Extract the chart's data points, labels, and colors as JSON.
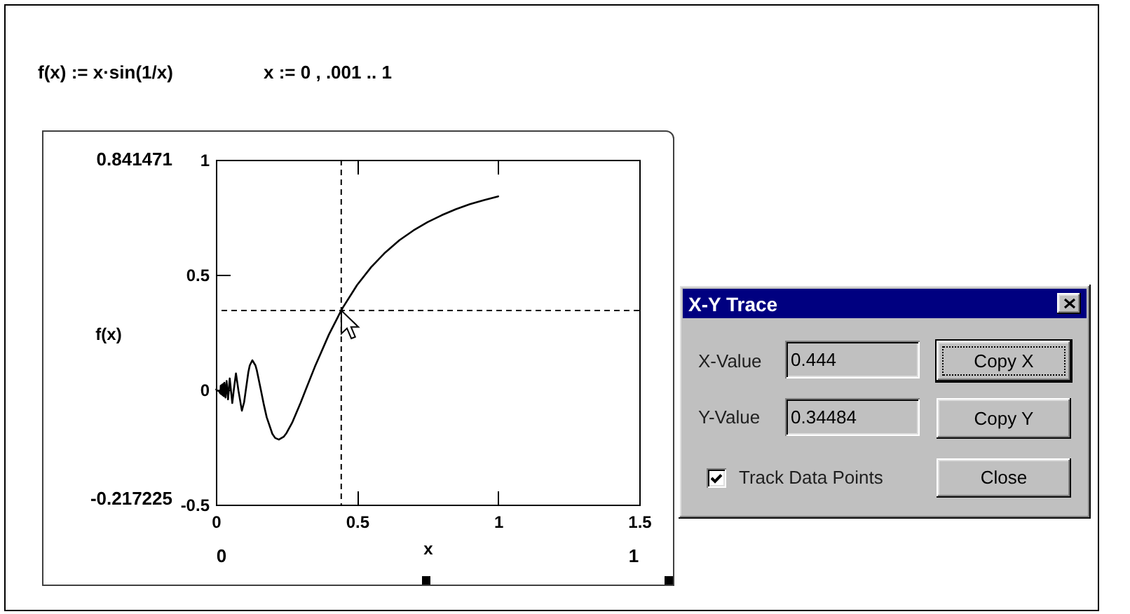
{
  "chart_data": [
    {
      "type": "line",
      "title": "f(x) := x·sin(1/x)",
      "subtitle": "x := 0 , .001 .. 1",
      "xlabel": "x",
      "ylabel": "f(x)",
      "x": [
        0.001,
        0.005,
        0.01,
        0.016,
        0.017,
        0.018,
        0.019,
        0.02,
        0.022,
        0.024,
        0.026,
        0.028,
        0.03,
        0.034,
        0.038,
        0.043,
        0.049,
        0.053,
        0.058,
        0.064,
        0.071,
        0.08,
        0.092,
        0.1,
        0.106,
        0.115,
        0.12,
        0.129,
        0.14,
        0.145,
        0.159,
        0.17,
        0.18,
        0.2,
        0.21,
        0.223,
        0.24,
        0.25,
        0.27,
        0.3,
        0.318,
        0.35,
        0.4,
        0.444,
        0.45,
        0.5,
        0.55,
        0.6,
        0.65,
        0.7,
        0.75,
        0.8,
        0.85,
        0.9,
        0.95,
        1
      ],
      "values": [
        0.001,
        -0.004,
        -0.005,
        -0.016,
        0.017,
        -0.018,
        0.019,
        -0.02,
        0.022,
        -0.024,
        0.025,
        -0.028,
        0.03,
        -0.034,
        0.038,
        -0.042,
        0.049,
        0.001,
        -0.058,
        0.005,
        0.071,
        -0.005,
        -0.091,
        -0.054,
        -0.001,
        0.077,
        0.106,
        0.128,
        0.106,
        0.084,
        0.001,
        -0.066,
        -0.12,
        -0.192,
        -0.21,
        -0.217,
        -0.205,
        -0.189,
        -0.144,
        -0.057,
        -0.001,
        0.098,
        0.239,
        0.345,
        0.358,
        0.455,
        0.533,
        0.597,
        0.65,
        0.693,
        0.729,
        0.759,
        0.785,
        0.807,
        0.825,
        0.841
      ],
      "color": "#000000",
      "xlim": [
        0,
        1.5
      ],
      "xticks": [
        0,
        0.5,
        1,
        1.5
      ],
      "ylim": [
        -0.5,
        1
      ],
      "yticks": [
        -0.5,
        0,
        0.5,
        1
      ],
      "ref_lines": [
        {
          "axis": "x",
          "value": 0.444,
          "line_style": "dashed",
          "color": "#000000"
        },
        {
          "axis": "y",
          "value": 0.34484,
          "line_style": "dashed",
          "color": "#000000"
        }
      ],
      "annotations": [
        "0.841471",
        "-0.217225",
        "0",
        "1"
      ]
    },
    {
      "type": "other",
      "title": "X-Y Trace",
      "annotations": [
        "X-Value",
        "0.444",
        "Y-Value",
        "0.34484",
        "Track Data Points",
        "Copy X",
        "Copy Y",
        "Close"
      ]
    }
  ]
}
